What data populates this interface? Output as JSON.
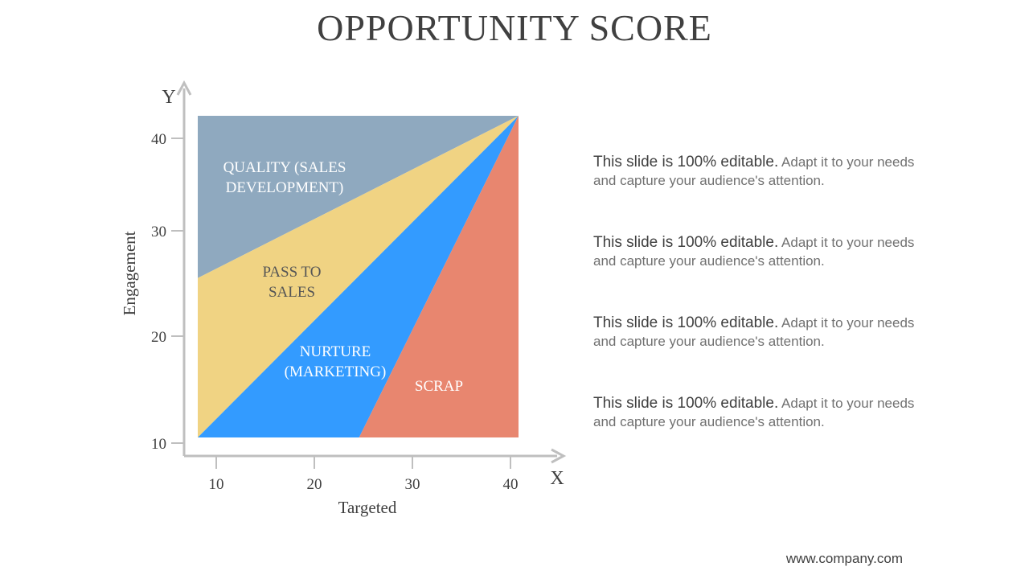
{
  "slide": {
    "title": "OPPORTUNITY SCORE",
    "footer_url": "www.company.com"
  },
  "chart_data": {
    "type": "area",
    "title": "",
    "xlabel": "Targeted",
    "ylabel": "Engagement",
    "x_axis_letter": "X",
    "y_axis_letter": "Y",
    "x_ticks": [
      "10",
      "20",
      "30",
      "40"
    ],
    "y_ticks": [
      "10",
      "20",
      "30",
      "40"
    ],
    "x_tick_values": [
      10,
      20,
      30,
      40
    ],
    "y_tick_values": [
      10,
      20,
      30,
      40
    ],
    "xlim": [
      8.3,
      41.1
    ],
    "ylim": [
      10.2,
      42.7
    ],
    "grid": false,
    "regions": [
      {
        "id": "quality",
        "label_lines": [
          "QUALITY (SALES",
          "DEVELOPMENT)"
        ],
        "color": "#8FA9BF",
        "label_color": "#FFFFFF",
        "polygon": [
          [
            8.3,
            42.7
          ],
          [
            41.1,
            42.7
          ],
          [
            8.3,
            26.3
          ]
        ]
      },
      {
        "id": "pass-to-sales",
        "label_lines": [
          "PASS TO",
          "SALES"
        ],
        "color": "#F0D383",
        "label_color": "#555555",
        "polygon": [
          [
            8.3,
            26.3
          ],
          [
            41.1,
            42.7
          ],
          [
            8.3,
            10.2
          ]
        ]
      },
      {
        "id": "nurture",
        "label_lines": [
          "NURTURE",
          "(MARKETING)"
        ],
        "color": "#339BFF",
        "label_color": "#FFFFFF",
        "polygon": [
          [
            8.3,
            10.2
          ],
          [
            41.1,
            42.7
          ],
          [
            24.8,
            10.2
          ]
        ]
      },
      {
        "id": "scrap",
        "label_lines": [
          "SCRAP"
        ],
        "color": "#E8866F",
        "label_color": "#FFFFFF",
        "polygon": [
          [
            24.8,
            10.2
          ],
          [
            41.1,
            42.7
          ],
          [
            41.1,
            10.2
          ]
        ]
      }
    ]
  },
  "notes": [
    {
      "lead": "This slide is 100% editable.",
      "rest": " Adapt it to your needs and capture your audience's attention."
    },
    {
      "lead": "This slide is 100% editable.",
      "rest": " Adapt it to your needs and capture your audience's attention."
    },
    {
      "lead": "This slide is 100% editable.",
      "rest": " Adapt it to your needs and capture your audience's attention."
    },
    {
      "lead": "This slide is 100% editable.",
      "rest": " Adapt it to your needs and capture your audience's attention."
    }
  ]
}
